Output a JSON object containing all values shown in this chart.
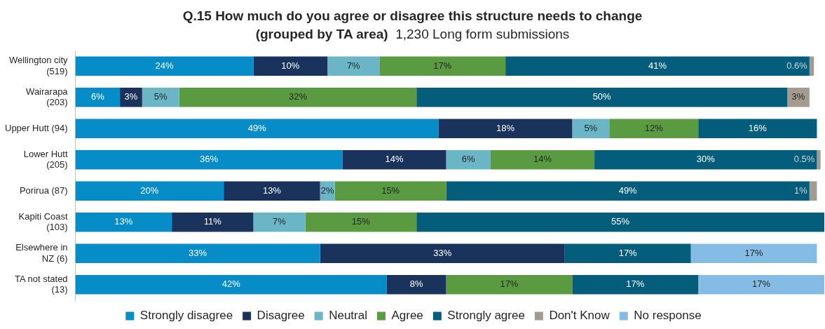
{
  "chart_data": {
    "type": "bar",
    "orientation": "horizontal",
    "stacked": true,
    "title": "Q.15 How much do you agree or disagree this structure needs to change (grouped by TA area)",
    "subtitle": "1,230 Long form submissions",
    "categories": [
      "Wellington city (519)",
      "Wairarapa (203)",
      "Upper Hutt (94)",
      "Lower Hutt (205)",
      "Porirua (87)",
      "Kapiti Coast (103)",
      "Elsewhere in NZ (6)",
      "TA not stated (13)"
    ],
    "xlim": [
      0,
      101
    ],
    "tick_labels": "y",
    "grid": false,
    "legend": "bottom",
    "series": [
      {
        "name": "Strongly disagree",
        "color": "#068dc8",
        "values": [
          24,
          6,
          49,
          36,
          20,
          13,
          33,
          42
        ],
        "value_labels": [
          "24%",
          "6%",
          "49%",
          "36%",
          "20%",
          "13%",
          "33%",
          "42%"
        ]
      },
      {
        "name": "Disagree",
        "color": "#1a335c",
        "values": [
          10,
          3,
          18,
          14,
          13,
          11,
          33,
          8
        ],
        "value_labels": [
          "10%",
          "3%",
          "18%",
          "14%",
          "13%",
          "11%",
          "33%",
          "8%"
        ]
      },
      {
        "name": "Neutral",
        "color": "#6ab6c6",
        "values": [
          7,
          5,
          5,
          6,
          2,
          7,
          null,
          null
        ],
        "value_labels": [
          "7%",
          "5%",
          "5%",
          "6%",
          "2%",
          "7%",
          null,
          null
        ]
      },
      {
        "name": "Agree",
        "color": "#5a9b42",
        "values": [
          17,
          32,
          12,
          14,
          15,
          15,
          null,
          17
        ],
        "value_labels": [
          "17%",
          "32%",
          "12%",
          "14%",
          "15%",
          "15%",
          null,
          "17%"
        ]
      },
      {
        "name": "Strongly agree",
        "color": "#045d7a",
        "values": [
          41,
          50,
          16,
          30,
          49,
          55,
          17,
          17
        ],
        "value_labels": [
          "41%",
          "50%",
          "16%",
          "30%",
          "49%",
          "55%",
          "17%",
          "17%"
        ]
      },
      {
        "name": "Don't Know",
        "color": "#a39b90",
        "values": [
          0.6,
          3,
          null,
          0.5,
          1,
          null,
          null,
          null
        ],
        "value_labels": [
          "0.6%",
          "3%",
          null,
          "0.5%",
          "1%",
          null,
          null,
          null
        ]
      },
      {
        "name": "No response",
        "color": "#85bce6",
        "values": [
          null,
          null,
          null,
          null,
          null,
          null,
          17,
          17
        ],
        "value_labels": [
          null,
          null,
          null,
          null,
          null,
          null,
          "17%",
          "17%"
        ]
      }
    ]
  }
}
